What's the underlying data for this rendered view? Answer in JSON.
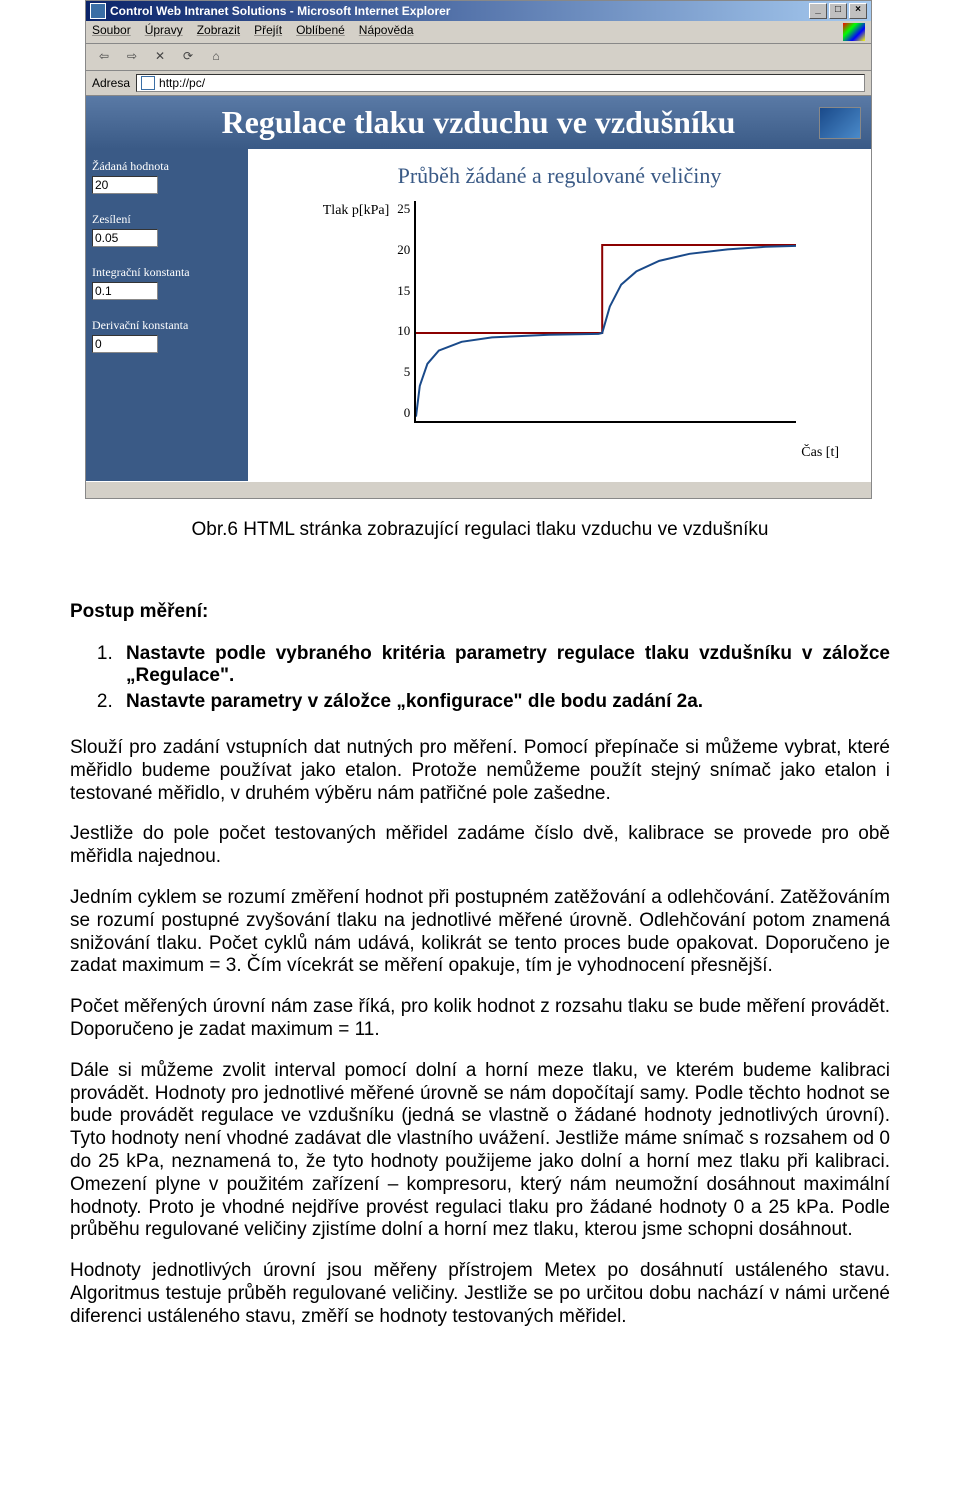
{
  "browser": {
    "title": "Control Web Intranet Solutions - Microsoft Internet Explorer",
    "menu": [
      "Soubor",
      "Úpravy",
      "Zobrazit",
      "Přejít",
      "Oblíbené",
      "Nápověda"
    ],
    "address_label": "Adresa",
    "address_url": "http://pc/"
  },
  "app": {
    "header_title": "Regulace tlaku vzduchu ve vzdušníku",
    "sidebar": {
      "params": [
        {
          "label": "Žádaná hodnota",
          "value": "20"
        },
        {
          "label": "Zesílení",
          "value": "0.05"
        },
        {
          "label": "Integrační konstanta",
          "value": "0.1"
        },
        {
          "label": "Derivační konstanta",
          "value": "0"
        }
      ]
    },
    "chart": {
      "title": "Průběh žádané a regulované veličiny",
      "ylabel": "Tlak p[kPa]",
      "xlabel": "Čas [t]",
      "ymin": 0,
      "ymax": 25,
      "yticks": [
        25,
        20,
        15,
        10,
        5,
        0
      ],
      "series": [
        {
          "name": "setpoint",
          "color": "#8b0000",
          "width": 2,
          "points": [
            [
              0,
              10
            ],
            [
              49,
              10
            ],
            [
              49,
              20
            ],
            [
              100,
              20
            ]
          ]
        },
        {
          "name": "measured",
          "color": "#1a4a8a",
          "width": 2,
          "points": [
            [
              0,
              0.5
            ],
            [
              1,
              4
            ],
            [
              3,
              6.5
            ],
            [
              6,
              8
            ],
            [
              12,
              9
            ],
            [
              20,
              9.5
            ],
            [
              35,
              9.8
            ],
            [
              48,
              9.9
            ],
            [
              49,
              10
            ],
            [
              51,
              13
            ],
            [
              54,
              15.5
            ],
            [
              58,
              17
            ],
            [
              64,
              18.2
            ],
            [
              72,
              19
            ],
            [
              82,
              19.5
            ],
            [
              92,
              19.8
            ],
            [
              100,
              19.9
            ]
          ]
        }
      ]
    }
  },
  "caption": "Obr.6 HTML stránka zobrazující regulaci tlaku vzduchu ve vzdušníku",
  "section_title": "Postup měření:",
  "steps": [
    "Nastavte podle vybraného kritéria parametry regulace tlaku vzdušníku v záložce „Regulace\".",
    "Nastavte parametry v záložce „konfigurace\" dle bodu zadání 2a."
  ],
  "paragraphs": [
    "Slouží pro zadání vstupních dat nutných pro měření. Pomocí přepínače si můžeme vybrat, které měřidlo budeme používat jako etalon. Protože nemůžeme použít stejný snímač jako etalon i testované měřidlo, v druhém výběru nám patřičné pole zašedne.",
    "Jestliže do pole počet testovaných měřidel zadáme číslo dvě, kalibrace se provede pro obě měřidla najednou.",
    "Jedním cyklem se rozumí změření hodnot při postupném zatěžování a odlehčování. Zatěžováním se rozumí postupné zvyšování tlaku na jednotlivé měřené úrovně. Odlehčování potom znamená snižování tlaku. Počet cyklů nám udává, kolikrát se tento proces bude opakovat. Doporučeno je zadat maximum = 3. Čím vícekrát se měření opakuje, tím je vyhodnocení přesnější.",
    "Počet měřených úrovní nám zase říká, pro kolik hodnot z rozsahu tlaku se bude měření provádět. Doporučeno je zadat maximum = 11.",
    "Dále si můžeme zvolit interval pomocí dolní a horní meze tlaku, ve kterém budeme kalibraci provádět. Hodnoty pro jednotlivé měřené úrovně se nám dopočítají samy. Podle těchto hodnot se bude provádět regulace ve vzdušníku (jedná se vlastně o žádané hodnoty jednotlivých úrovní). Tyto hodnoty není vhodné zadávat dle vlastního uvážení. Jestliže máme snímač s rozsahem od 0 do 25 kPa, neznamená to, že tyto hodnoty použijeme jako dolní a horní mez tlaku při kalibraci. Omezení plyne v použitém zařízení – kompresoru, který nám neumožní dosáhnout maximální hodnoty. Proto je vhodné nejdříve provést regulaci tlaku pro žádané hodnoty 0 a 25 kPa. Podle průběhu regulované veličiny zjistíme dolní a horní mez tlaku, kterou jsme schopni dosáhnout.",
    "Hodnoty jednotlivých úrovní jsou měřeny přístrojem Metex po dosáhnutí ustáleného stavu. Algoritmus testuje průběh regulované veličiny. Jestliže se po určitou dobu nachází v námi určené diferenci ustáleného stavu, změří se hodnoty testovaných měřidel."
  ]
}
